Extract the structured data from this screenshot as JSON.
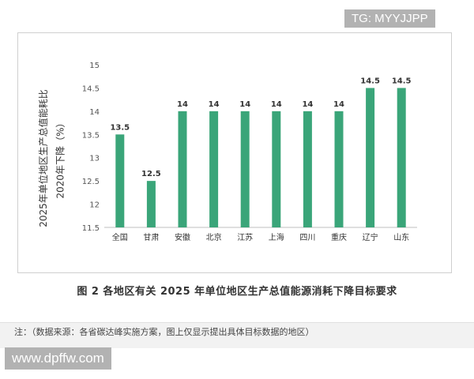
{
  "watermark_top": "TG: MYYJJPP",
  "watermark_bottom": "www.dpffw.com",
  "caption": "图 2   各地区有关 2025 年单位地区生产总值能源消耗下降目标要求",
  "note": "注：（数据来源：各省碳达峰实施方案，图上仅显示提出具体目标数据的地区）",
  "chart_data": {
    "type": "bar",
    "title": "",
    "ylabel_lines": [
      "2025年单位地区生产总值能耗比",
      "2020年下降（%）"
    ],
    "xlabel": "",
    "categories": [
      "全国",
      "甘肃",
      "安徽",
      "北京",
      "江苏",
      "上海",
      "四川",
      "重庆",
      "辽宁",
      "山东"
    ],
    "values": [
      13.5,
      12.5,
      14,
      14,
      14,
      14,
      14,
      14,
      14.5,
      14.5
    ],
    "value_labels": [
      "13.5",
      "12.5",
      "14",
      "14",
      "14",
      "14",
      "14",
      "14",
      "14.5",
      "14.5"
    ],
    "ylim": [
      11.5,
      15
    ],
    "yticks": [
      11.5,
      12,
      12.5,
      13,
      13.5,
      14,
      14.5,
      15
    ],
    "ytick_labels": [
      "11.5",
      "12",
      "12.5",
      "13",
      "13.5",
      "14",
      "14.5",
      "15"
    ],
    "grid": false,
    "bar_color": "#3aa579"
  }
}
